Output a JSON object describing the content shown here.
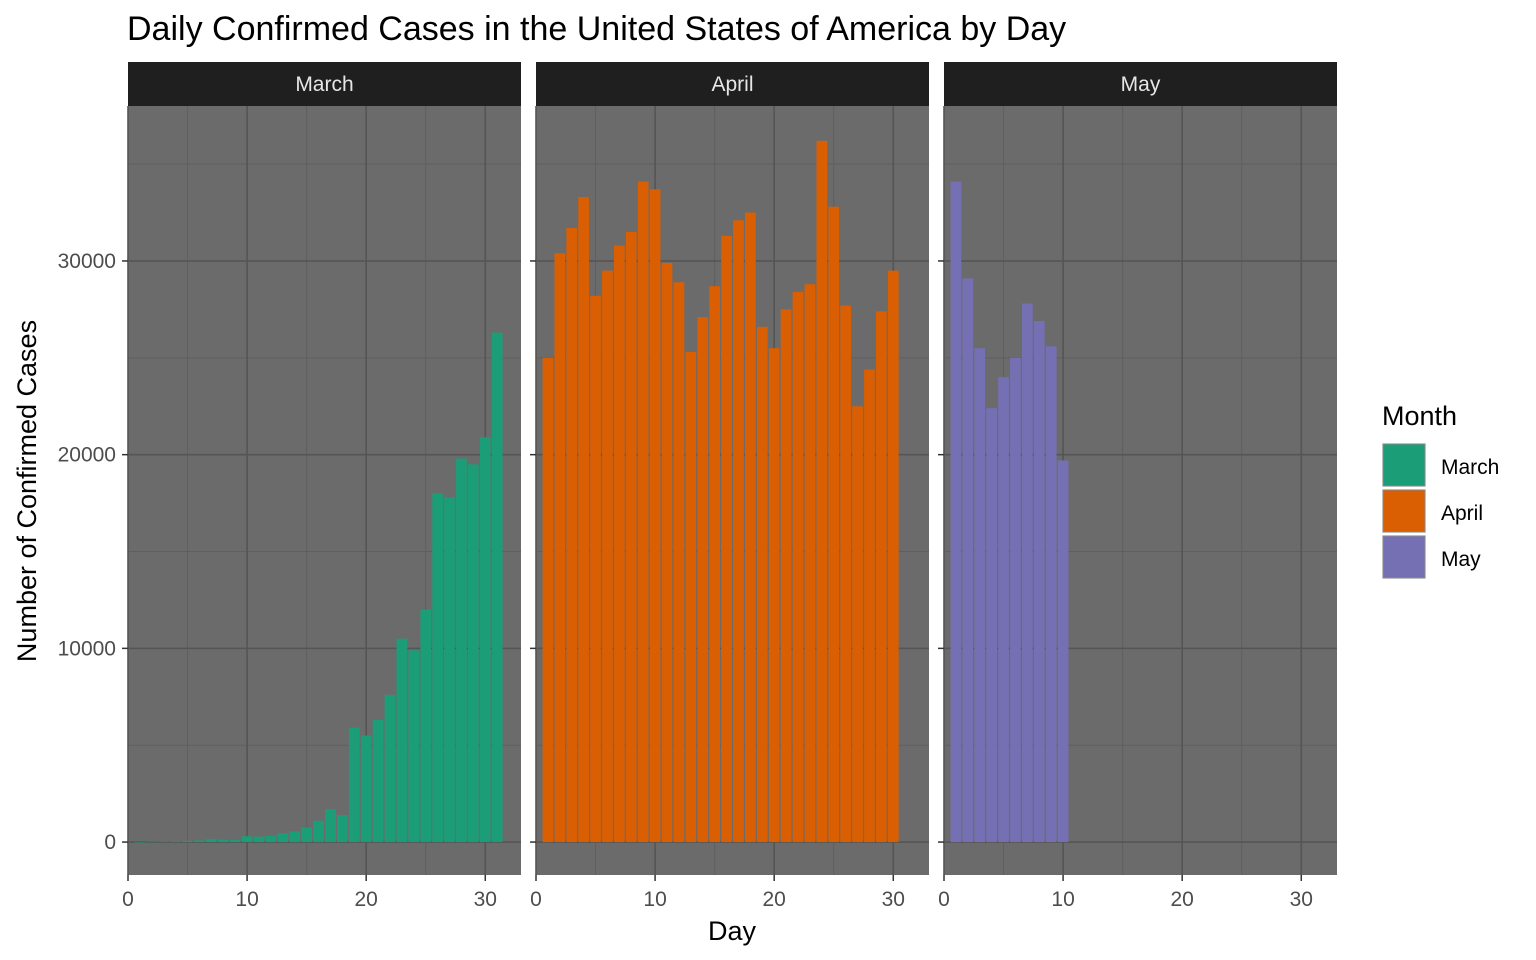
{
  "chart_data": {
    "type": "bar",
    "title": "Daily Confirmed Cases in the United States of America by Day",
    "xlabel": "Day",
    "ylabel": "Number of Confirmed Cases",
    "xlim": [
      0,
      33
    ],
    "ylim": [
      -1700,
      38000
    ],
    "x_ticks": [
      0,
      10,
      20,
      30
    ],
    "y_ticks": [
      0,
      10000,
      20000,
      30000
    ],
    "grid": true,
    "legend": {
      "title": "Month",
      "placement": "right"
    },
    "facet_by": "Month",
    "series": [
      {
        "name": "March",
        "color": "#1b9e77",
        "x": [
          1,
          2,
          3,
          4,
          5,
          6,
          7,
          8,
          9,
          10,
          11,
          12,
          13,
          14,
          15,
          16,
          17,
          18,
          19,
          20,
          21,
          22,
          23,
          24,
          25,
          26,
          27,
          28,
          29,
          30,
          31
        ],
        "values": [
          5,
          20,
          30,
          40,
          60,
          80,
          150,
          120,
          100,
          300,
          280,
          320,
          450,
          550,
          750,
          1100,
          1700,
          1400,
          5900,
          5500,
          6300,
          7600,
          10500,
          9900,
          12000,
          18000,
          17800,
          19800,
          19500,
          20900,
          26300
        ]
      },
      {
        "name": "April",
        "color": "#d95f02",
        "x": [
          1,
          2,
          3,
          4,
          5,
          6,
          7,
          8,
          9,
          10,
          11,
          12,
          13,
          14,
          15,
          16,
          17,
          18,
          19,
          20,
          21,
          22,
          23,
          24,
          25,
          26,
          27,
          28,
          29,
          30
        ],
        "values": [
          25000,
          30400,
          31700,
          33300,
          28200,
          29500,
          30800,
          31500,
          34100,
          33700,
          29900,
          28900,
          25300,
          27100,
          28700,
          31300,
          32100,
          32500,
          26600,
          25500,
          27500,
          28400,
          28800,
          36200,
          32800,
          27700,
          22500,
          24400,
          27400,
          29500
        ]
      },
      {
        "name": "May",
        "color": "#7570b3",
        "x": [
          1,
          2,
          3,
          4,
          5,
          6,
          7,
          8,
          9,
          10
        ],
        "values": [
          34100,
          29100,
          25500,
          22400,
          24000,
          25000,
          27800,
          26900,
          25600,
          19700
        ]
      }
    ]
  }
}
